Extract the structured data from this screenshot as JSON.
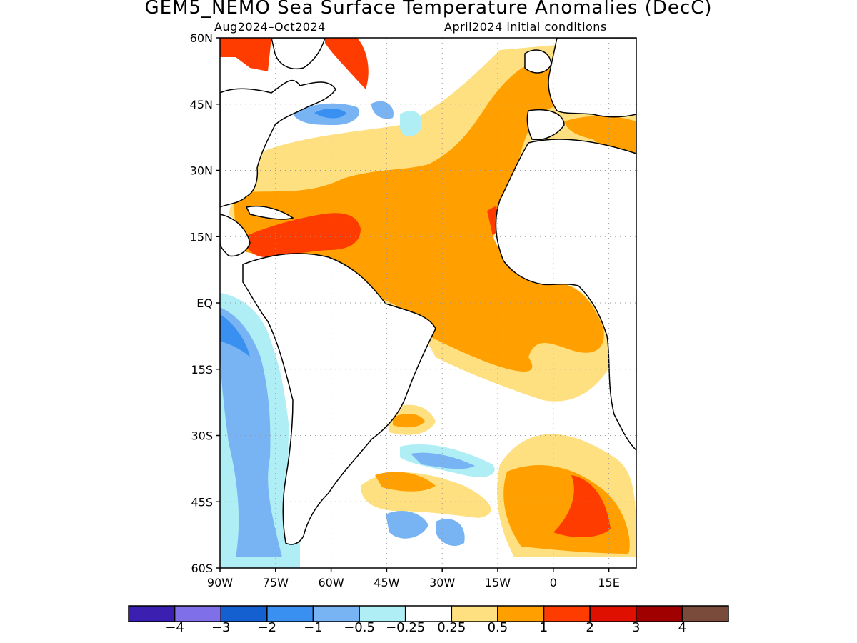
{
  "title": "GEM5_NEMO Sea Surface Temperature Anomalies (DecC)",
  "subtitle_left": "Aug2024–Oct2024",
  "subtitle_right": "April2024 initial conditions",
  "axes": {
    "lat_labels": [
      "60N",
      "45N",
      "30N",
      "15N",
      "EQ",
      "15S",
      "30S",
      "45S",
      "60S"
    ],
    "lon_labels": [
      "90W",
      "75W",
      "60W",
      "45W",
      "30W",
      "15W",
      "0",
      "15E"
    ]
  },
  "colorbar": {
    "colors": [
      "#3a1fb0",
      "#7f6fe8",
      "#1560d0",
      "#3a90f0",
      "#78b4f4",
      "#b0eef6",
      "#ffffff",
      "#ffe080",
      "#ffa000",
      "#ff3c00",
      "#e01000",
      "#a00000",
      "#7a4a3a"
    ],
    "labels": [
      "−4",
      "−3",
      "−2",
      "−1",
      "−0.5",
      "−0.25",
      "0.25",
      "0.5",
      "1",
      "2",
      "3",
      "4"
    ]
  },
  "colors": {
    "land": "#ffffff",
    "grid": "#9a9a9a",
    "coast": "#000000"
  }
}
